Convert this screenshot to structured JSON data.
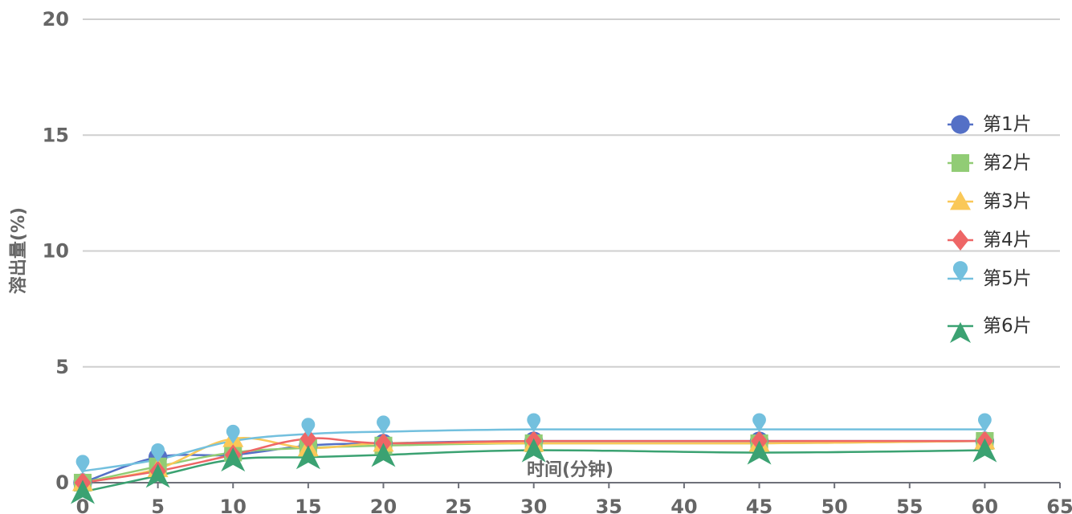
{
  "chart_data": {
    "type": "line",
    "title": "",
    "xlabel": "时间(分钟)",
    "ylabel": "溶出量(%)",
    "xlim": [
      0,
      65
    ],
    "ylim": [
      0,
      20
    ],
    "x_ticks": [
      "0",
      "5",
      "10",
      "15",
      "20",
      "25",
      "30",
      "35",
      "40",
      "45",
      "50",
      "55",
      "60",
      "65"
    ],
    "y_ticks": [
      "0",
      "5",
      "10",
      "15",
      "20"
    ],
    "grid": "horizontal",
    "legend_position": "right",
    "x": [
      0,
      5,
      10,
      15,
      20,
      30,
      45,
      60
    ],
    "series": [
      {
        "name": "第1片",
        "marker": "circle",
        "color": "#5470c6",
        "values": [
          0,
          1.1,
          1.2,
          1.6,
          1.7,
          1.8,
          1.8,
          1.8
        ]
      },
      {
        "name": "第2片",
        "marker": "square",
        "color": "#91cc75",
        "values": [
          0,
          0.7,
          1.3,
          1.5,
          1.6,
          1.7,
          1.7,
          1.8
        ]
      },
      {
        "name": "第3片",
        "marker": "triangle",
        "color": "#fac858",
        "values": [
          0,
          0.6,
          1.9,
          1.5,
          1.7,
          1.7,
          1.7,
          1.8
        ]
      },
      {
        "name": "第4片",
        "marker": "diamond",
        "color": "#ee6666",
        "values": [
          0,
          0.5,
          1.2,
          1.9,
          1.7,
          1.8,
          1.8,
          1.8
        ]
      },
      {
        "name": "第5片",
        "marker": "pin",
        "color": "#73c0de",
        "values": [
          0.5,
          1.0,
          1.8,
          2.1,
          2.2,
          2.3,
          2.3,
          2.3
        ]
      },
      {
        "name": "第6片",
        "marker": "arrow",
        "color": "#3ba272",
        "values": [
          -0.4,
          0.3,
          1.0,
          1.1,
          1.2,
          1.4,
          1.3,
          1.4
        ]
      }
    ]
  }
}
